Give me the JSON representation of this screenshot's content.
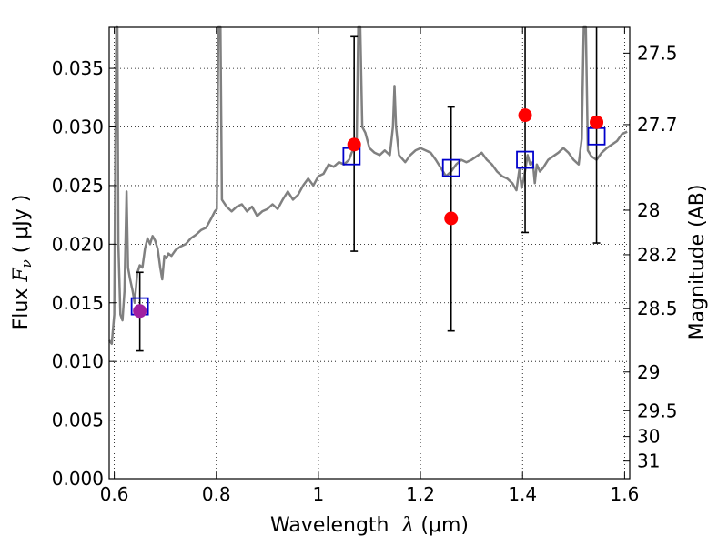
{
  "chart_data": {
    "type": "scatter",
    "xlabel": {
      "prefix": "Wavelength  ",
      "symbol": "λ",
      "suffix": " (μm)"
    },
    "ylabel": {
      "prefix": "Flux  ",
      "symbol": "F",
      "subscript": "ν",
      "suffix": "  ( μJy )"
    },
    "y2label": "Magnitude (AB)",
    "xlim": [
      0.59,
      1.61
    ],
    "ylim": [
      0.0,
      0.0385
    ],
    "grid": true,
    "x_ticks": [
      0.6,
      0.8,
      1.0,
      1.2,
      1.4,
      1.6
    ],
    "x_tick_labels": [
      "0.6",
      "0.8",
      "1",
      "1.2",
      "1.4",
      "1.6"
    ],
    "y_ticks": [
      0.0,
      0.005,
      0.01,
      0.015,
      0.02,
      0.025,
      0.03,
      0.035
    ],
    "y_tick_labels": [
      "0.000",
      "0.005",
      "0.010",
      "0.015",
      "0.020",
      "0.025",
      "0.030",
      "0.035"
    ],
    "y2_ticks": [
      {
        "label": "27.5",
        "flux": 0.0363
      },
      {
        "label": "27.7",
        "flux": 0.0302
      },
      {
        "label": "28",
        "flux": 0.0229
      },
      {
        "label": "28.2",
        "flux": 0.0191
      },
      {
        "label": "28.5",
        "flux": 0.0145
      },
      {
        "label": "29",
        "flux": 0.0091
      },
      {
        "label": "29.5",
        "flux": 0.0058
      },
      {
        "label": "30",
        "flux": 0.0036
      },
      {
        "label": "31",
        "flux": 0.0015
      }
    ],
    "series": [
      {
        "kind": "model-spectrum",
        "color": "#808080",
        "points": [
          [
            0.59,
            0.0118
          ],
          [
            0.595,
            0.0115
          ],
          [
            0.6,
            0.014
          ],
          [
            0.602,
            0.027
          ],
          [
            0.604,
            0.0385
          ],
          [
            0.606,
            0.0385
          ],
          [
            0.608,
            0.02
          ],
          [
            0.612,
            0.014
          ],
          [
            0.616,
            0.0135
          ],
          [
            0.62,
            0.016
          ],
          [
            0.624,
            0.0245
          ],
          [
            0.627,
            0.018
          ],
          [
            0.631,
            0.017
          ],
          [
            0.636,
            0.016
          ],
          [
            0.64,
            0.015
          ],
          [
            0.645,
            0.0175
          ],
          [
            0.65,
            0.0182
          ],
          [
            0.655,
            0.018
          ],
          [
            0.66,
            0.0196
          ],
          [
            0.665,
            0.0205
          ],
          [
            0.67,
            0.02
          ],
          [
            0.675,
            0.0207
          ],
          [
            0.68,
            0.0203
          ],
          [
            0.685,
            0.0196
          ],
          [
            0.69,
            0.018
          ],
          [
            0.694,
            0.017
          ],
          [
            0.698,
            0.019
          ],
          [
            0.702,
            0.0188
          ],
          [
            0.706,
            0.0192
          ],
          [
            0.712,
            0.019
          ],
          [
            0.72,
            0.0195
          ],
          [
            0.73,
            0.0198
          ],
          [
            0.74,
            0.02
          ],
          [
            0.75,
            0.0205
          ],
          [
            0.76,
            0.0208
          ],
          [
            0.77,
            0.0212
          ],
          [
            0.78,
            0.0214
          ],
          [
            0.79,
            0.0222
          ],
          [
            0.797,
            0.0228
          ],
          [
            0.801,
            0.023
          ],
          [
            0.804,
            0.0385
          ],
          [
            0.808,
            0.0385
          ],
          [
            0.811,
            0.0238
          ],
          [
            0.82,
            0.0232
          ],
          [
            0.83,
            0.0228
          ],
          [
            0.84,
            0.0232
          ],
          [
            0.85,
            0.0234
          ],
          [
            0.86,
            0.0228
          ],
          [
            0.87,
            0.0232
          ],
          [
            0.88,
            0.0224
          ],
          [
            0.89,
            0.0228
          ],
          [
            0.9,
            0.023
          ],
          [
            0.91,
            0.0234
          ],
          [
            0.92,
            0.023
          ],
          [
            0.93,
            0.0238
          ],
          [
            0.94,
            0.0245
          ],
          [
            0.95,
            0.0238
          ],
          [
            0.96,
            0.0242
          ],
          [
            0.97,
            0.025
          ],
          [
            0.98,
            0.0256
          ],
          [
            0.99,
            0.025
          ],
          [
            1.0,
            0.0258
          ],
          [
            1.01,
            0.026
          ],
          [
            1.02,
            0.0268
          ],
          [
            1.03,
            0.0266
          ],
          [
            1.04,
            0.027
          ],
          [
            1.05,
            0.0268
          ],
          [
            1.06,
            0.0272
          ],
          [
            1.065,
            0.0278
          ],
          [
            1.07,
            0.0282
          ],
          [
            1.075,
            0.029
          ],
          [
            1.078,
            0.0385
          ],
          [
            1.082,
            0.0385
          ],
          [
            1.086,
            0.03
          ],
          [
            1.092,
            0.0295
          ],
          [
            1.1,
            0.0282
          ],
          [
            1.11,
            0.0278
          ],
          [
            1.12,
            0.0276
          ],
          [
            1.13,
            0.028
          ],
          [
            1.14,
            0.0276
          ],
          [
            1.146,
            0.03
          ],
          [
            1.149,
            0.0335
          ],
          [
            1.152,
            0.03
          ],
          [
            1.158,
            0.0276
          ],
          [
            1.17,
            0.027
          ],
          [
            1.18,
            0.0276
          ],
          [
            1.19,
            0.028
          ],
          [
            1.2,
            0.0282
          ],
          [
            1.21,
            0.028
          ],
          [
            1.22,
            0.0278
          ],
          [
            1.23,
            0.0272
          ],
          [
            1.24,
            0.0265
          ],
          [
            1.25,
            0.0258
          ],
          [
            1.26,
            0.0262
          ],
          [
            1.27,
            0.0268
          ],
          [
            1.28,
            0.0272
          ],
          [
            1.29,
            0.027
          ],
          [
            1.3,
            0.0272
          ],
          [
            1.31,
            0.0275
          ],
          [
            1.32,
            0.0278
          ],
          [
            1.33,
            0.0272
          ],
          [
            1.34,
            0.0268
          ],
          [
            1.35,
            0.0262
          ],
          [
            1.36,
            0.0258
          ],
          [
            1.37,
            0.0256
          ],
          [
            1.38,
            0.0252
          ],
          [
            1.388,
            0.0246
          ],
          [
            1.394,
            0.0265
          ],
          [
            1.398,
            0.0248
          ],
          [
            1.402,
            0.0255
          ],
          [
            1.41,
            0.0276
          ],
          [
            1.415,
            0.0268
          ],
          [
            1.42,
            0.027
          ],
          [
            1.424,
            0.0252
          ],
          [
            1.428,
            0.0268
          ],
          [
            1.434,
            0.0262
          ],
          [
            1.44,
            0.0265
          ],
          [
            1.45,
            0.0272
          ],
          [
            1.46,
            0.0275
          ],
          [
            1.47,
            0.0278
          ],
          [
            1.48,
            0.0282
          ],
          [
            1.49,
            0.0278
          ],
          [
            1.5,
            0.0272
          ],
          [
            1.51,
            0.0268
          ],
          [
            1.516,
            0.029
          ],
          [
            1.52,
            0.0385
          ],
          [
            1.524,
            0.0385
          ],
          [
            1.528,
            0.028
          ],
          [
            1.535,
            0.0275
          ],
          [
            1.545,
            0.0272
          ],
          [
            1.555,
            0.0278
          ],
          [
            1.565,
            0.0282
          ],
          [
            1.575,
            0.0285
          ],
          [
            1.585,
            0.0288
          ],
          [
            1.595,
            0.0294
          ],
          [
            1.605,
            0.0296
          ]
        ]
      },
      {
        "kind": "model-band-flux",
        "marker": "open-square",
        "color": "#0000cc",
        "points": [
          [
            0.65,
            0.0147
          ],
          [
            1.065,
            0.0275
          ],
          [
            1.26,
            0.0265
          ],
          [
            1.405,
            0.0272
          ],
          [
            1.545,
            0.0292
          ]
        ]
      },
      {
        "kind": "observed-flux",
        "marker": "filled-circle",
        "color": "#ff0000",
        "points": [
          {
            "x": 0.65,
            "y": 0.0143,
            "ylo": 0.0109,
            "yhi": 0.0176
          },
          {
            "x": 1.07,
            "y": 0.0285,
            "ylo": 0.0194,
            "yhi": 0.0377
          },
          {
            "x": 1.26,
            "y": 0.0222,
            "ylo": 0.0126,
            "yhi": 0.0317
          },
          {
            "x": 1.405,
            "y": 0.031,
            "ylo": 0.021,
            "yhi": 0.0385
          },
          {
            "x": 1.545,
            "y": 0.0304,
            "ylo": 0.0201,
            "yhi": 0.0385
          }
        ]
      }
    ],
    "overlap_color": "#a020a0"
  }
}
